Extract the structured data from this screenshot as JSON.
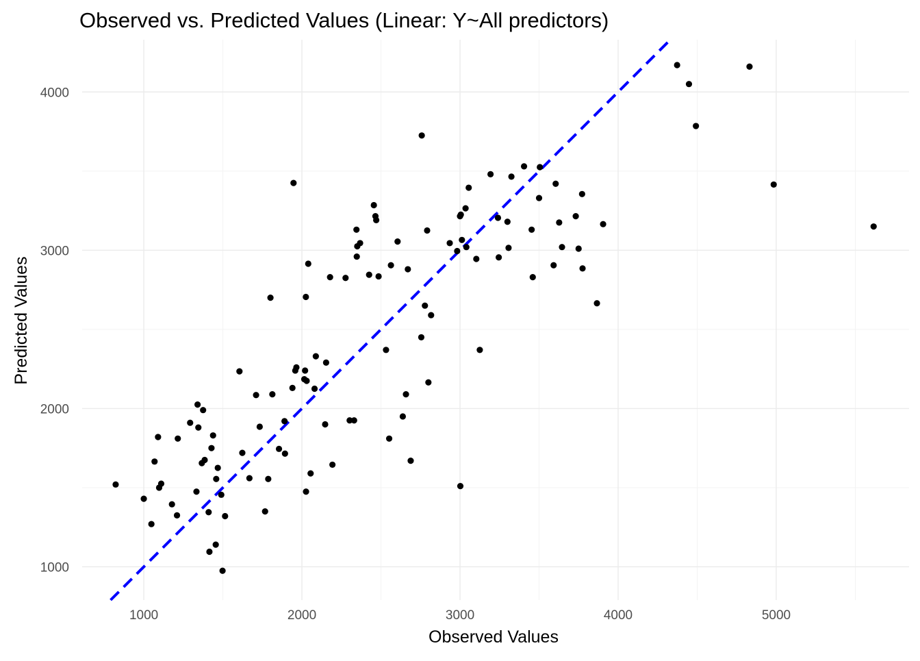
{
  "chart_data": {
    "type": "scatter",
    "title": "Observed vs. Predicted Values (Linear: Y~All predictors)",
    "xlabel": "Observed Values",
    "ylabel": "Predicted Values",
    "xlim": [
      610,
      5840
    ],
    "ylim": [
      790,
      4330
    ],
    "x_ticks": [
      1000,
      2000,
      3000,
      4000,
      5000
    ],
    "x_tick_labels": [
      "1000",
      "2000",
      "3000",
      "4000",
      "5000"
    ],
    "y_ticks": [
      1000,
      2000,
      3000,
      4000
    ],
    "y_tick_labels": [
      "1000",
      "2000",
      "3000",
      "4000"
    ],
    "grid": true,
    "reference_line": {
      "type": "identity",
      "slope": 1,
      "intercept": 0,
      "color": "#0000ff",
      "style": "dashed"
    },
    "point_color": "#000000",
    "points": [
      [
        822,
        1520
      ],
      [
        1000,
        1430
      ],
      [
        1048,
        1270
      ],
      [
        1068,
        1665
      ],
      [
        1090,
        1820
      ],
      [
        1097,
        1500
      ],
      [
        1110,
        1525
      ],
      [
        1178,
        1395
      ],
      [
        1210,
        1325
      ],
      [
        1215,
        1810
      ],
      [
        1293,
        1910
      ],
      [
        1333,
        1475
      ],
      [
        1340,
        2025
      ],
      [
        1345,
        1880
      ],
      [
        1367,
        1655
      ],
      [
        1375,
        1990
      ],
      [
        1385,
        1675
      ],
      [
        1410,
        1345
      ],
      [
        1415,
        1095
      ],
      [
        1428,
        1750
      ],
      [
        1438,
        1830
      ],
      [
        1455,
        1140
      ],
      [
        1458,
        1555
      ],
      [
        1468,
        1625
      ],
      [
        1490,
        1455
      ],
      [
        1498,
        975
      ],
      [
        1514,
        1320
      ],
      [
        1605,
        2235
      ],
      [
        1623,
        1720
      ],
      [
        1668,
        1560
      ],
      [
        1710,
        2085
      ],
      [
        1733,
        1885
      ],
      [
        1767,
        1350
      ],
      [
        1787,
        1555
      ],
      [
        1801,
        2700
      ],
      [
        1813,
        2090
      ],
      [
        1855,
        1745
      ],
      [
        1890,
        1920
      ],
      [
        1893,
        1715
      ],
      [
        1940,
        2130
      ],
      [
        1947,
        3425
      ],
      [
        1958,
        2240
      ],
      [
        1965,
        2260
      ],
      [
        2015,
        2185
      ],
      [
        2020,
        2240
      ],
      [
        2025,
        2705
      ],
      [
        2026,
        1475
      ],
      [
        2030,
        2175
      ],
      [
        2040,
        2915
      ],
      [
        2055,
        1590
      ],
      [
        2080,
        2125
      ],
      [
        2088,
        2330
      ],
      [
        2147,
        1900
      ],
      [
        2153,
        2290
      ],
      [
        2178,
        2830
      ],
      [
        2193,
        1645
      ],
      [
        2276,
        2825
      ],
      [
        2302,
        1925
      ],
      [
        2330,
        1925
      ],
      [
        2345,
        3130
      ],
      [
        2347,
        2960
      ],
      [
        2350,
        3025
      ],
      [
        2368,
        3045
      ],
      [
        2425,
        2845
      ],
      [
        2455,
        3285
      ],
      [
        2465,
        3215
      ],
      [
        2470,
        3190
      ],
      [
        2485,
        2835
      ],
      [
        2532,
        2370
      ],
      [
        2552,
        1810
      ],
      [
        2563,
        2905
      ],
      [
        2605,
        3055
      ],
      [
        2638,
        1950
      ],
      [
        2658,
        2090
      ],
      [
        2670,
        2880
      ],
      [
        2688,
        1670
      ],
      [
        2755,
        2450
      ],
      [
        2758,
        3725
      ],
      [
        2778,
        2650
      ],
      [
        2792,
        3125
      ],
      [
        2800,
        2165
      ],
      [
        2817,
        2590
      ],
      [
        2935,
        3045
      ],
      [
        2982,
        2995
      ],
      [
        3000,
        3215
      ],
      [
        3002,
        1510
      ],
      [
        3005,
        3225
      ],
      [
        3012,
        3065
      ],
      [
        3035,
        3265
      ],
      [
        3040,
        3020
      ],
      [
        3055,
        3395
      ],
      [
        3103,
        2945
      ],
      [
        3125,
        2370
      ],
      [
        3193,
        3480
      ],
      [
        3240,
        3205
      ],
      [
        3245,
        2955
      ],
      [
        3300,
        3180
      ],
      [
        3307,
        3015
      ],
      [
        3325,
        3465
      ],
      [
        3405,
        3530
      ],
      [
        3453,
        3130
      ],
      [
        3460,
        2830
      ],
      [
        3500,
        3330
      ],
      [
        3505,
        3525
      ],
      [
        3592,
        2905
      ],
      [
        3605,
        3420
      ],
      [
        3627,
        3175
      ],
      [
        3645,
        3020
      ],
      [
        3732,
        3215
      ],
      [
        3750,
        3010
      ],
      [
        3772,
        3355
      ],
      [
        3775,
        2885
      ],
      [
        3866,
        2665
      ],
      [
        3905,
        3165
      ],
      [
        4373,
        4170
      ],
      [
        4448,
        4050
      ],
      [
        4492,
        3785
      ],
      [
        4831,
        4160
      ],
      [
        4984,
        3415
      ],
      [
        5616,
        3150
      ]
    ]
  }
}
